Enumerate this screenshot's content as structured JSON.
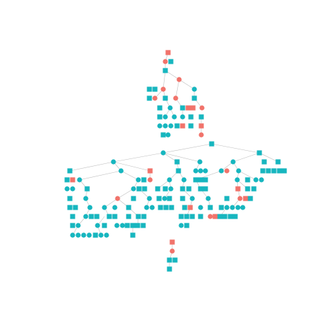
{
  "colors": {
    "background": "#ffffff",
    "edge": "#bdbdbd",
    "teal": "#17b6bf",
    "red": "#f1736b"
  },
  "legend": {
    "shapes": [
      "square",
      "circle"
    ],
    "color_classes": [
      "teal",
      "red"
    ]
  },
  "trees": [
    {
      "id": "top",
      "root": {
        "shape": "square",
        "color": "red",
        "children": [
          {
            "shape": "circle",
            "color": "red",
            "children": [
              {
                "shape": "square",
                "color": "teal",
                "children": [
                  {
                    "shape": "circle",
                    "color": "red",
                    "children": [
                      {
                        "shape": "square",
                        "color": "teal",
                        "children": []
                      },
                      {
                        "shape": "circle",
                        "color": "teal",
                        "children": []
                      }
                    ]
                  },
                  {
                    "shape": "circle",
                    "color": "red",
                    "children": [
                      {
                        "shape": "square",
                        "color": "teal",
                        "children": []
                      },
                      {
                        "shape": "circle",
                        "color": "teal",
                        "children": []
                      }
                    ]
                  }
                ]
              }
            ]
          }
        ]
      }
    },
    {
      "id": "main",
      "root": {
        "shape": "square",
        "color": "teal",
        "children": []
      }
    },
    {
      "id": "bottom",
      "root": {
        "shape": "square",
        "color": "red",
        "children": [
          {
            "shape": "circle",
            "color": "red",
            "children": [
              {
                "shape": "square",
                "color": "teal",
                "children": []
              },
              {
                "shape": "square",
                "color": "teal",
                "children": []
              }
            ]
          }
        ]
      }
    }
  ]
}
